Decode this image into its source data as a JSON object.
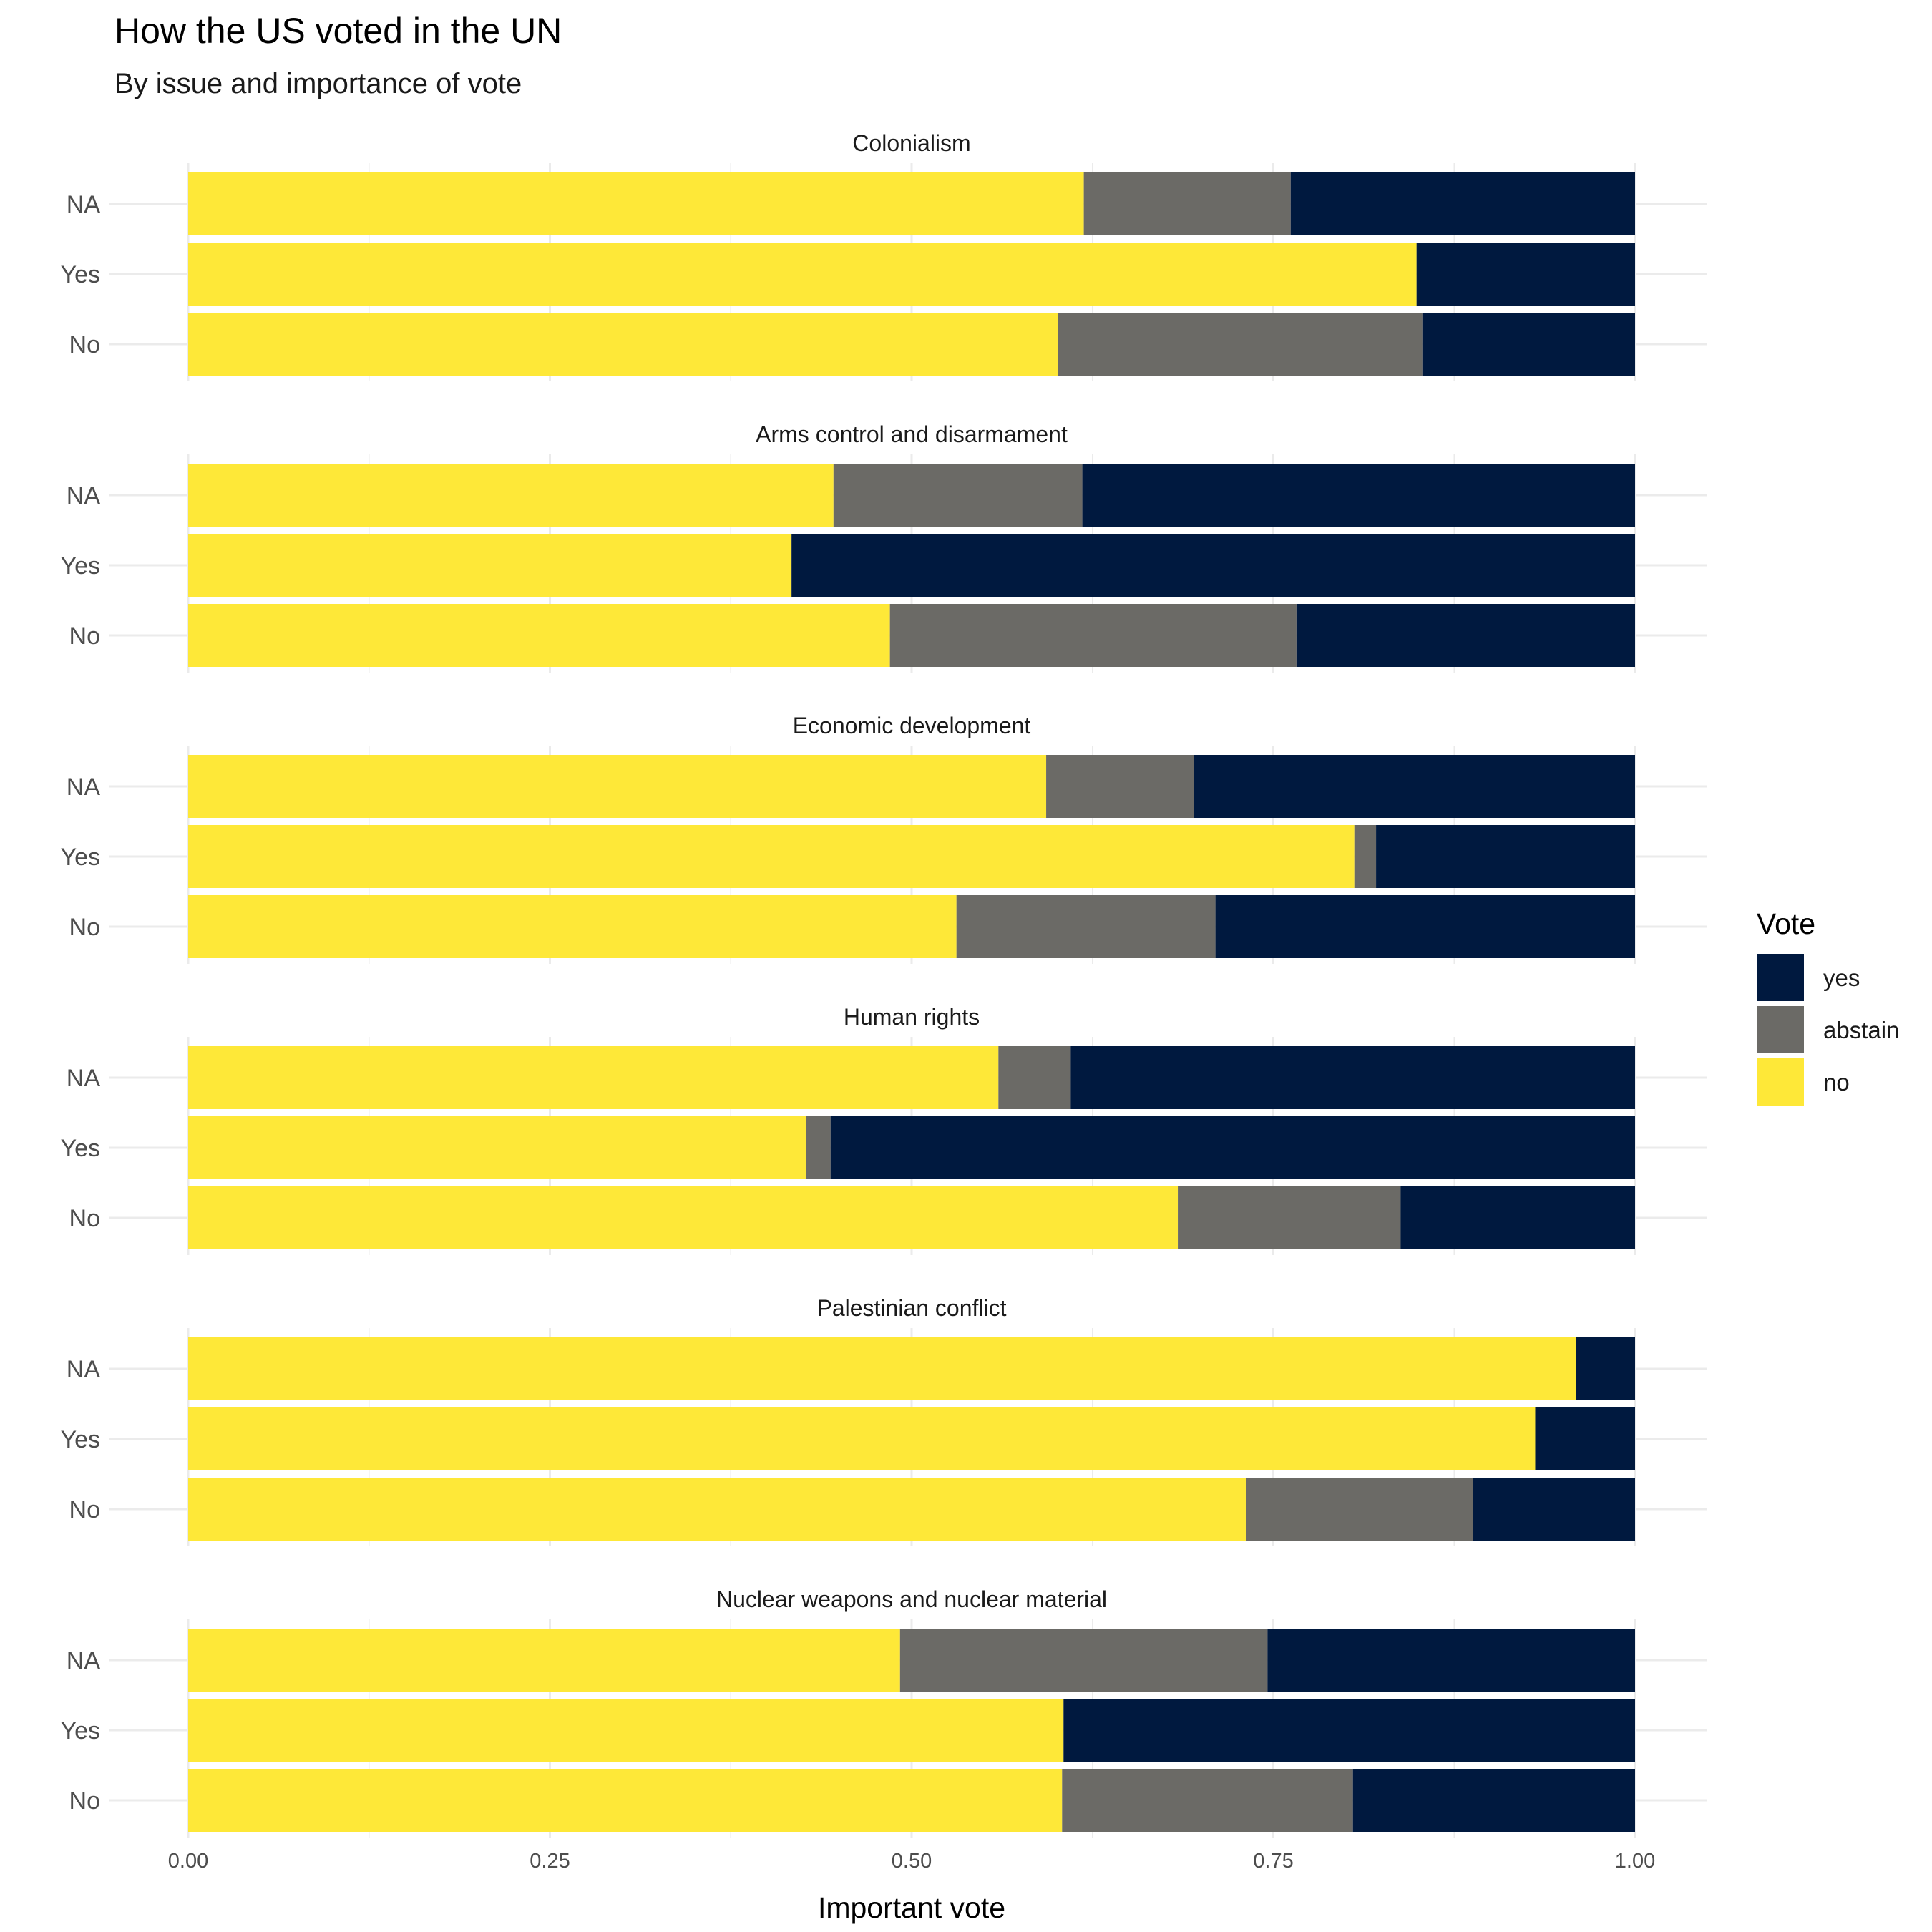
{
  "chart_data": {
    "type": "bar",
    "orientation": "horizontal",
    "stacked": true,
    "title": "How the US voted in the UN",
    "subtitle": "By issue and importance of vote",
    "xlabel": "Important vote",
    "ylabel": "",
    "xlim": [
      0,
      1
    ],
    "xticks": [
      "0.00",
      "0.25",
      "0.50",
      "0.75",
      "1.00"
    ],
    "xtick_values": [
      0,
      0.25,
      0.5,
      0.75,
      1.0
    ],
    "categories": [
      "NA",
      "Yes",
      "No"
    ],
    "grid": true,
    "legend": {
      "title": "Vote",
      "position": "right",
      "entries": [
        {
          "name": "yes",
          "color": "#00193f"
        },
        {
          "name": "abstain",
          "color": "#6b6a66"
        },
        {
          "name": "no",
          "color": "#fee838"
        }
      ]
    },
    "stack_order": [
      "no",
      "abstain",
      "yes"
    ],
    "panels": [
      {
        "name": "Colonialism",
        "rows": [
          {
            "label": "NA",
            "no": 0.619,
            "abstain": 0.143,
            "yes": 0.238
          },
          {
            "label": "Yes",
            "no": 0.849,
            "abstain": 0.0,
            "yes": 0.151
          },
          {
            "label": "No",
            "no": 0.601,
            "abstain": 0.252,
            "yes": 0.147
          }
        ]
      },
      {
        "name": "Arms control and disarmament",
        "rows": [
          {
            "label": "NA",
            "no": 0.446,
            "abstain": 0.172,
            "yes": 0.382
          },
          {
            "label": "Yes",
            "no": 0.417,
            "abstain": 0.0,
            "yes": 0.583
          },
          {
            "label": "No",
            "no": 0.485,
            "abstain": 0.281,
            "yes": 0.234
          }
        ]
      },
      {
        "name": "Economic development",
        "rows": [
          {
            "label": "NA",
            "no": 0.593,
            "abstain": 0.102,
            "yes": 0.305
          },
          {
            "label": "Yes",
            "no": 0.806,
            "abstain": 0.015,
            "yes": 0.179
          },
          {
            "label": "No",
            "no": 0.531,
            "abstain": 0.179,
            "yes": 0.29
          }
        ]
      },
      {
        "name": "Human rights",
        "rows": [
          {
            "label": "NA",
            "no": 0.56,
            "abstain": 0.05,
            "yes": 0.39
          },
          {
            "label": "Yes",
            "no": 0.427,
            "abstain": 0.017,
            "yes": 0.556
          },
          {
            "label": "No",
            "no": 0.684,
            "abstain": 0.154,
            "yes": 0.162
          }
        ]
      },
      {
        "name": "Palestinian conflict",
        "rows": [
          {
            "label": "NA",
            "no": 0.959,
            "abstain": 0.0,
            "yes": 0.041
          },
          {
            "label": "Yes",
            "no": 0.931,
            "abstain": 0.0,
            "yes": 0.069
          },
          {
            "label": "No",
            "no": 0.731,
            "abstain": 0.157,
            "yes": 0.112
          }
        ]
      },
      {
        "name": "Nuclear weapons and nuclear material",
        "rows": [
          {
            "label": "NA",
            "no": 0.492,
            "abstain": 0.254,
            "yes": 0.254
          },
          {
            "label": "Yes",
            "no": 0.605,
            "abstain": 0.0,
            "yes": 0.395
          },
          {
            "label": "No",
            "no": 0.604,
            "abstain": 0.201,
            "yes": 0.195
          }
        ]
      }
    ]
  }
}
